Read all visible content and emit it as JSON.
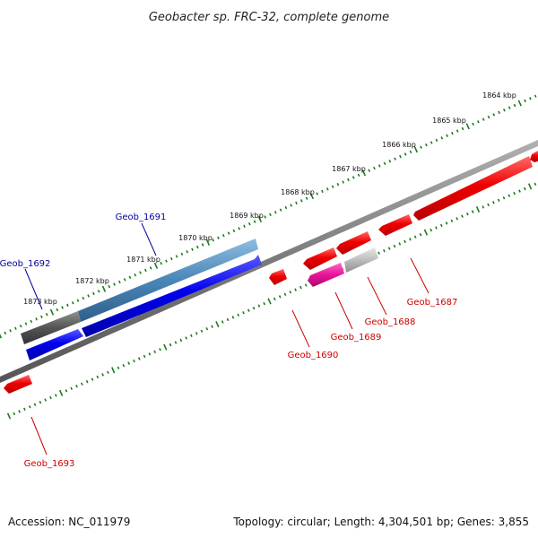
{
  "title": "Geobacter sp. FRC-32, complete genome",
  "footer": {
    "accession": "Accession: NC_011979",
    "summary": "Topology: circular; Length: 4,304,501 bp; Genes: 3,855"
  },
  "kbp_ticks": [
    {
      "label": "1864 kbp",
      "pos": 1864
    },
    {
      "label": "1865 kbp",
      "pos": 1865
    },
    {
      "label": "1866 kbp",
      "pos": 1866
    },
    {
      "label": "1867 kbp",
      "pos": 1867
    },
    {
      "label": "1868 kbp",
      "pos": 1868
    },
    {
      "label": "1869 kbp",
      "pos": 1869
    },
    {
      "label": "1870 kbp",
      "pos": 1870
    },
    {
      "label": "1871 kbp",
      "pos": 1871
    },
    {
      "label": "1872 kbp",
      "pos": 1872
    },
    {
      "label": "1873 kbp",
      "pos": 1873
    }
  ],
  "gene_labels": [
    {
      "id": "Geob_1691",
      "strand": "plus",
      "color": "#00009c"
    },
    {
      "id": "Geob_1692",
      "strand": "plus",
      "color": "#00009c"
    },
    {
      "id": "Geob_1687",
      "strand": "minus",
      "color": "#cc0000"
    },
    {
      "id": "Geob_1688",
      "strand": "minus",
      "color": "#cc0000"
    },
    {
      "id": "Geob_1689",
      "strand": "minus",
      "color": "#cc0000"
    },
    {
      "id": "Geob_1690",
      "strand": "minus",
      "color": "#cc0000"
    },
    {
      "id": "Geob_1693",
      "strand": "minus",
      "color": "#cc0000"
    }
  ],
  "colors": {
    "backbone": "#7a7a7a",
    "tick": "#1e7a1e",
    "forward_gene": "#0000ee",
    "reverse_gene": "#ee0000",
    "gene_1691_feature": "#4a86b8",
    "gene_1692_feature": "#555555",
    "gene_1689_feature": "#e8139a",
    "gene_1688_feature": "#bbbbbb"
  }
}
